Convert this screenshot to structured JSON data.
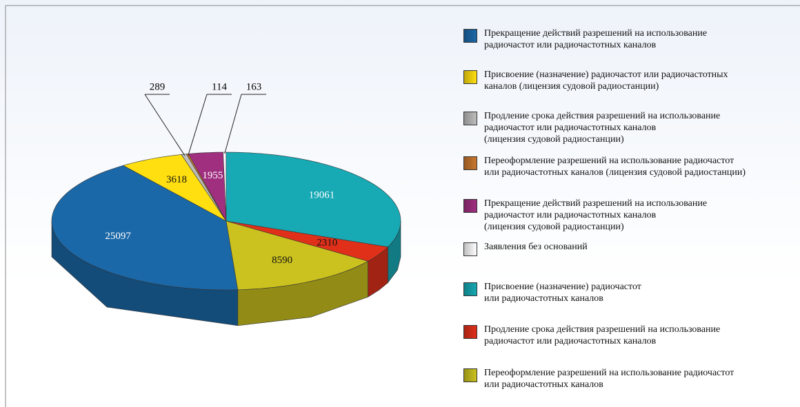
{
  "chart_data": {
    "type": "pie",
    "categories": [
      "Прекращение действий разрешений на использование\nрадиочастот или радиочастотных каналов",
      "Присвоение (назначение) радиочастот или радиочастотных\nканалов (лицензия судовой радиостанции)",
      "Продление срока действия разрешений на использование\nрадиочастот или радиочастотных каналов\n(лицензия судовой радиостанции)",
      "Переоформление разрешений на использование радиочастот\nили радиочастотных каналов (лицензия судовой радиостанции)",
      "Прекращение действий разрешений на использование\nрадиочастот или радиочастотных каналов\n(лицензия судовой радиостанции)",
      "Заявления без оснований",
      "Присвоение (назначение) радиочастот\nили радиочастотных каналов",
      "Продление срока действия разрешений на использование\nрадиочастот или радиочастотных каналов",
      "Переоформление разрешений на использование радиочастот\nили радиочастотных каналов"
    ],
    "values": [
      25097,
      3618,
      289,
      114,
      1955,
      163,
      19061,
      2310,
      8590
    ],
    "colors": [
      "#1b68a8",
      "#ffdf10",
      "#bdbdbd",
      "#c8772e",
      "#a02f80",
      "#ffffff",
      "#17a9b4",
      "#e0301a",
      "#cbc21f"
    ]
  }
}
